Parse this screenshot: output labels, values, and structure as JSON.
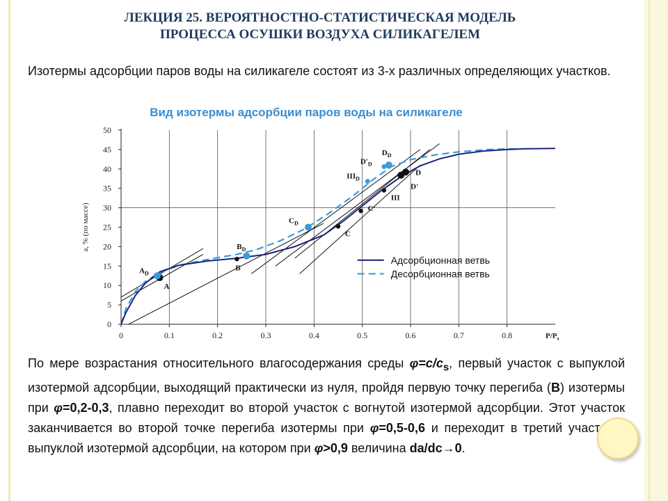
{
  "slide": {
    "title_line1": "ЛЕКЦИЯ 25. ВЕРОЯТНОСТНО-СТАТИСТИЧЕСКАЯ МОДЕЛЬ",
    "title_line2": "ПРОЦЕССА ОСУШКИ ВОЗДУХА СИЛИКАГЕЛЕМ",
    "intro": "Изотермы адсорбции паров воды на силикагеле состоят из 3-х различных определяющих участков.",
    "chart_heading": "Вид изотермы адсорбции паров воды на силикагеле",
    "body": {
      "t1": "По мере возрастания относительного влагосодержания среды ",
      "phi_eq": "φ=c/c",
      "phi_sub": "s",
      "t2": ", первый участок с выпуклой изотермой адсорбции, выходящий практически из нуля, пройдя первую точку перегиба (",
      "B": "В",
      "t3": ") изотермы при ",
      "phi1": "φ",
      "val1": "=0,2-0,3",
      "t4": ", плавно переходит во второй участок с вогнутой изотермой адсорбции. Этот участок заканчивается во второй точке перегиба изотермы при ",
      "phi2": "φ",
      "val2": "=0,5-0,6",
      "t5": " и переходит в третий участок с выпуклой изотермой адсорбции, на котором при ",
      "phi3": "φ",
      "val3": ">0,9",
      "t6": " величина ",
      "dadc": "da/dc→0",
      "t7": "."
    }
  },
  "colors": {
    "adsorption": "#1a237e",
    "desorption": "#3a9ad9",
    "title": "#1f3a5c",
    "heading": "#3a8dd0"
  },
  "chart_data": {
    "type": "line",
    "xlabel": "P/Ps",
    "ylabel": "a, % (по массе)",
    "xlim": [
      0,
      0.9
    ],
    "ylim": [
      0,
      50
    ],
    "x_ticks": [
      "0",
      "0.1",
      "0.2",
      "0.3",
      "0.4",
      "0.5",
      "0.6",
      "0.7",
      "0.8"
    ],
    "y_ticks": [
      "0",
      "5",
      "10",
      "15",
      "20",
      "25",
      "30",
      "35",
      "40",
      "45",
      "50"
    ],
    "grid": "vertical lines at x ticks, horizontal line at y=30",
    "legend_position": "inside lower-right",
    "series": [
      {
        "name": "Адсорбционная ветвь",
        "style": "solid",
        "x": [
          0,
          0.01,
          0.03,
          0.05,
          0.08,
          0.12,
          0.18,
          0.24,
          0.3,
          0.36,
          0.42,
          0.46,
          0.5,
          0.54,
          0.58,
          0.62,
          0.66,
          0.7,
          0.75,
          0.8,
          0.84,
          0.9
        ],
        "y": [
          0,
          3,
          7.5,
          10.5,
          13.5,
          15.2,
          16.3,
          17,
          18,
          20,
          23,
          26.5,
          30.5,
          34.5,
          38,
          40.8,
          42.6,
          43.8,
          44.6,
          45,
          45.2,
          45.3
        ]
      },
      {
        "name": "Десорбционная ветвь",
        "style": "dashed",
        "x": [
          0,
          0.01,
          0.03,
          0.05,
          0.08,
          0.12,
          0.18,
          0.24,
          0.28,
          0.33,
          0.38,
          0.43,
          0.48,
          0.52,
          0.56,
          0.6,
          0.65,
          0.7,
          0.76,
          0.82
        ],
        "y": [
          0,
          4,
          8.5,
          11,
          13.3,
          15.2,
          16.7,
          18,
          19.2,
          21.5,
          24.5,
          28.5,
          33,
          37,
          40.6,
          42.4,
          43.6,
          44.4,
          45,
          45.2
        ]
      }
    ],
    "points": [
      {
        "label": "A",
        "x": 0.08,
        "y": 12,
        "series": "adsorption"
      },
      {
        "label": "AD",
        "x": 0.075,
        "y": 12.5,
        "series": "desorption"
      },
      {
        "label": "B",
        "x": 0.24,
        "y": 16.8,
        "series": "adsorption"
      },
      {
        "label": "BD",
        "x": 0.26,
        "y": 17.6,
        "series": "desorption"
      },
      {
        "label": "C",
        "x": 0.45,
        "y": 25.2,
        "series": "adsorption"
      },
      {
        "label": "CD",
        "x": 0.388,
        "y": 25,
        "series": "desorption"
      },
      {
        "label": "C'",
        "x": 0.497,
        "y": 29.2,
        "series": "adsorption"
      },
      {
        "label": "III",
        "x": 0.545,
        "y": 34.5,
        "series": "adsorption"
      },
      {
        "label": "IIID",
        "x": 0.511,
        "y": 36.8,
        "series": "desorption"
      },
      {
        "label": "D",
        "x": 0.59,
        "y": 39.2,
        "series": "adsorption"
      },
      {
        "label": "D'",
        "x": 0.58,
        "y": 38.4,
        "series": "adsorption"
      },
      {
        "label": "DD",
        "x": 0.555,
        "y": 41,
        "series": "desorption"
      },
      {
        "label": "D'D",
        "x": 0.545,
        "y": 40.6,
        "series": "desorption"
      }
    ],
    "tangents": [
      {
        "x": [
          0.0,
          0.17
        ],
        "y": [
          7.0,
          19.5
        ]
      },
      {
        "x": [
          0.0,
          0.17
        ],
        "y": [
          6.0,
          18.0
        ]
      },
      {
        "x": [
          0.0,
          0.42
        ],
        "y": [
          -1.0,
          26.0
        ]
      },
      {
        "x": [
          0.27,
          0.62
        ],
        "y": [
          13.0,
          45.0
        ]
      },
      {
        "x": [
          0.32,
          0.66
        ],
        "y": [
          15.0,
          46.5
        ]
      },
      {
        "x": [
          0.37,
          0.62
        ],
        "y": [
          13.0,
          41.0
        ]
      },
      {
        "x": [
          0.36,
          0.64
        ],
        "y": [
          17.0,
          45.0
        ]
      }
    ]
  }
}
